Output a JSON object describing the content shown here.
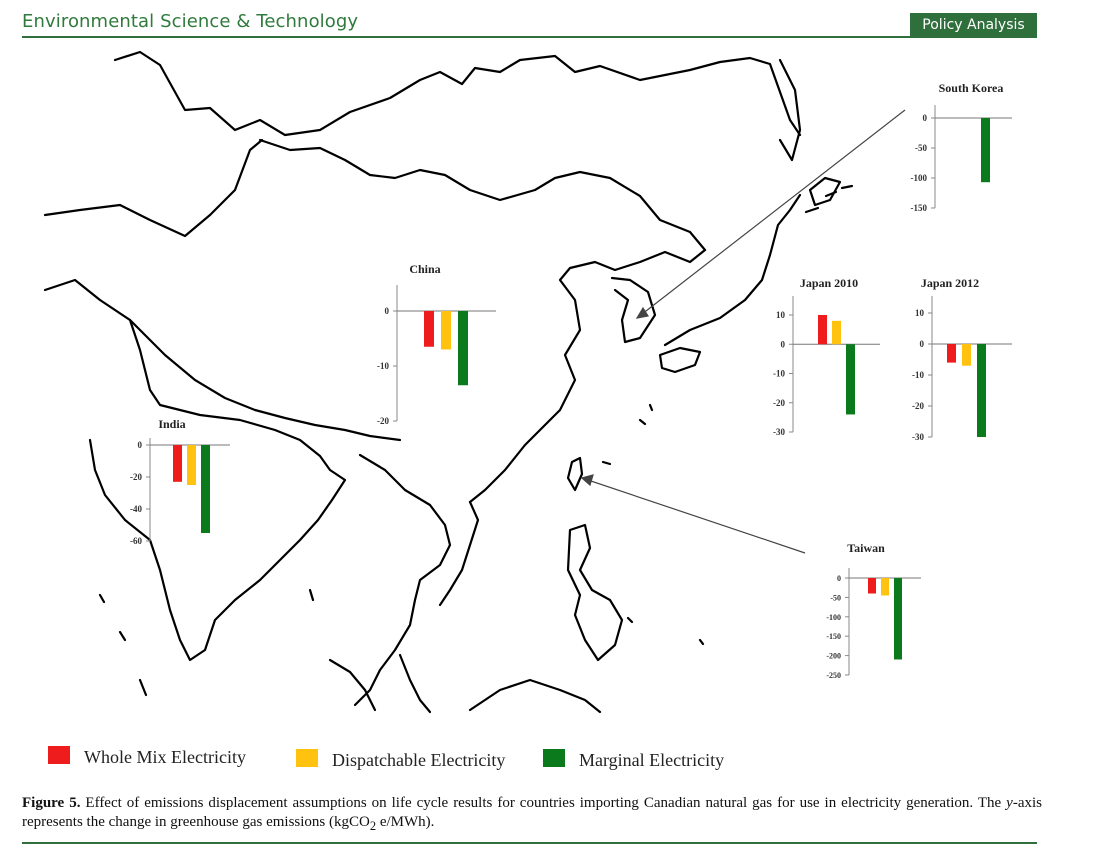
{
  "header": {
    "journal": "Environmental Science & Technology",
    "section": "Policy Analysis"
  },
  "colors": {
    "whole_mix": "#ee1c1c",
    "dispatchable": "#ffc20e",
    "marginal": "#0a7a1d",
    "rule": "#2e6f3b"
  },
  "legend": [
    {
      "label": "Whole Mix Electricity",
      "color": "#ee1c1c"
    },
    {
      "label": "Dispatchable Electricity",
      "color": "#ffc20e"
    },
    {
      "label": "Marginal Electricity",
      "color": "#0a7a1d"
    }
  ],
  "caption": {
    "label": "Figure 5.",
    "text_before_italic": " Effect of emissions displacement assumptions on life cycle results for countries importing Canadian natural gas for use in electricity generation. The ",
    "italic": "y",
    "text_after_italic": "-axis represents the change in greenhouse gas emissions (kgCO",
    "subscript": "2",
    "text_end": " e/MWh)."
  },
  "chart_data": [
    {
      "type": "bar",
      "title": "China",
      "categories": [
        "Whole Mix Electricity",
        "Dispatchable Electricity",
        "Marginal Electricity"
      ],
      "values": [
        -6.5,
        -7,
        -13.5
      ],
      "ylim": [
        -20,
        0
      ],
      "yticks": [
        "0",
        "-10",
        "-20"
      ]
    },
    {
      "type": "bar",
      "title": "India",
      "categories": [
        "Whole Mix Electricity",
        "Dispatchable Electricity",
        "Marginal Electricity"
      ],
      "values": [
        -23,
        -25,
        -55
      ],
      "ylim": [
        -60,
        0
      ],
      "yticks": [
        "0",
        "-20",
        "-40",
        "-60"
      ]
    },
    {
      "type": "bar",
      "title": "South Korea",
      "categories": [
        "Marginal Electricity"
      ],
      "values": [
        -107
      ],
      "ylim": [
        -150,
        0
      ],
      "yticks": [
        "0",
        "-50",
        "-100",
        "-150"
      ]
    },
    {
      "type": "bar",
      "title": "Japan 2010",
      "categories": [
        "Whole Mix Electricity",
        "Dispatchable Electricity",
        "Marginal Electricity"
      ],
      "values": [
        10,
        8,
        -24
      ],
      "ylim": [
        -30,
        10
      ],
      "yticks": [
        "10",
        "0",
        "-10",
        "-20",
        "-30"
      ]
    },
    {
      "type": "bar",
      "title": "Japan 2012",
      "categories": [
        "Whole Mix Electricity",
        "Dispatchable Electricity",
        "Marginal Electricity"
      ],
      "values": [
        -6,
        -7,
        -30
      ],
      "ylim": [
        -30,
        10
      ],
      "yticks": [
        "10",
        "0",
        "-10",
        "-20",
        "-30"
      ]
    },
    {
      "type": "bar",
      "title": "Taiwan",
      "categories": [
        "Whole Mix Electricity",
        "Dispatchable Electricity",
        "Marginal Electricity"
      ],
      "values": [
        -40,
        -45,
        -210
      ],
      "ylim": [
        -250,
        0
      ],
      "yticks": [
        "0",
        "-50",
        "-100",
        "-150",
        "-200",
        "-250"
      ]
    }
  ]
}
